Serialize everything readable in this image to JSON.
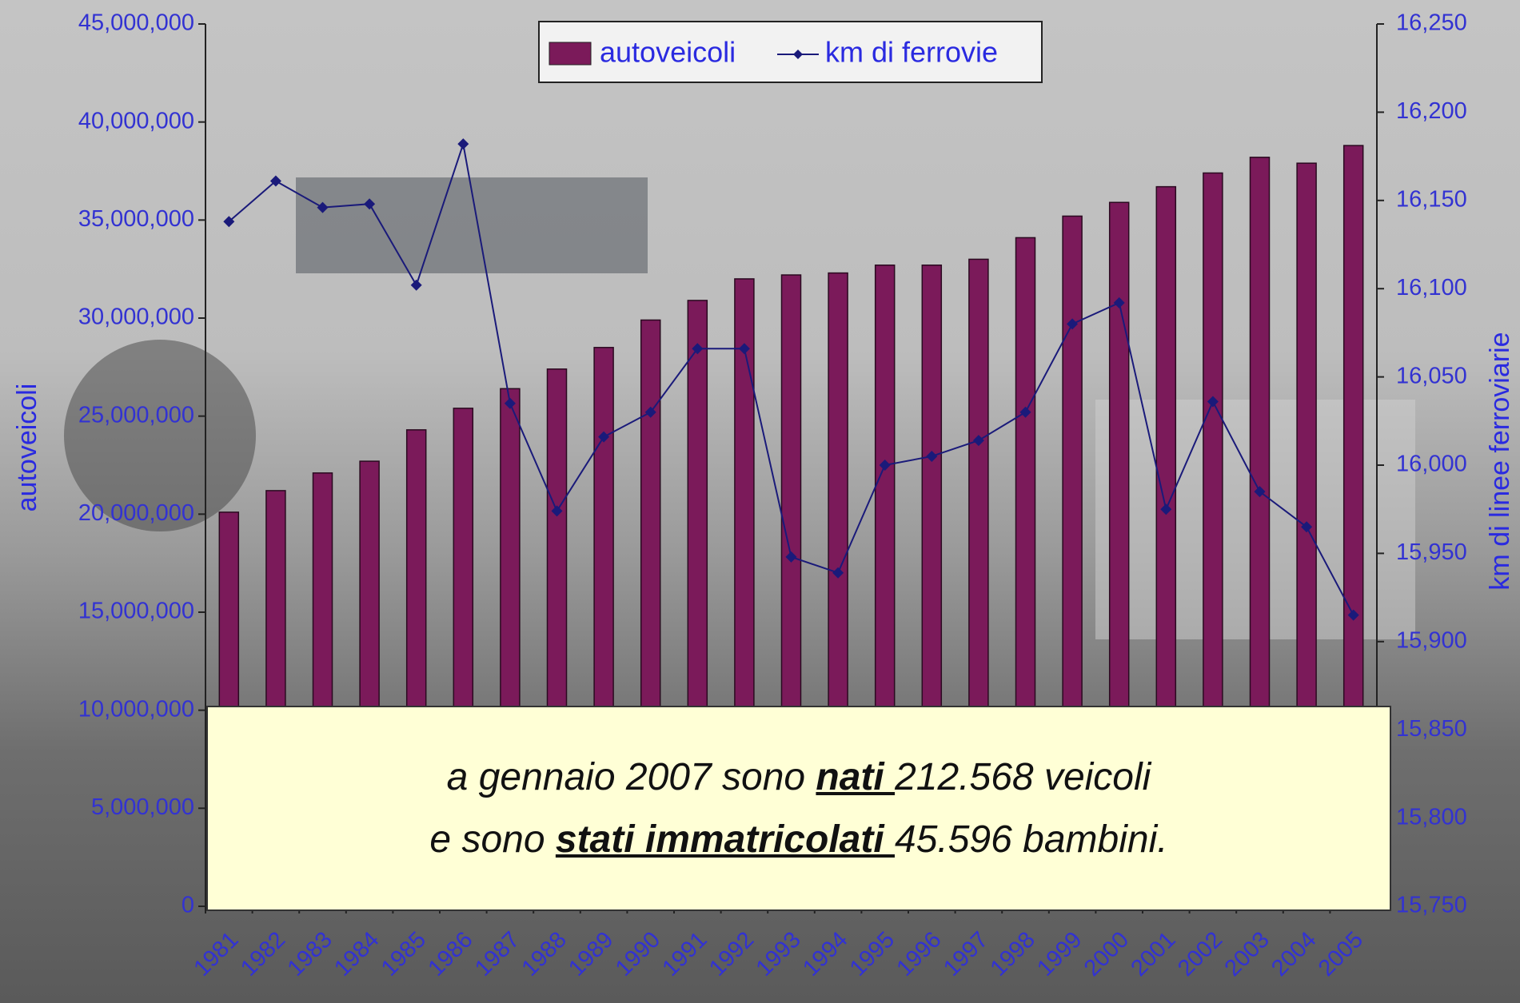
{
  "chart_data": {
    "type": "bar",
    "categories": [
      "1981",
      "1982",
      "1983",
      "1984",
      "1985",
      "1986",
      "1987",
      "1988",
      "1989",
      "1990",
      "1991",
      "1992",
      "1993",
      "1994",
      "1995",
      "1996",
      "1997",
      "1998",
      "1999",
      "2000",
      "2001",
      "2002",
      "2003",
      "2004",
      "2005"
    ],
    "series": [
      {
        "name": "autoveicoli",
        "type": "bar",
        "color": "#7b1a5a",
        "values": [
          20100000,
          21200000,
          22100000,
          22700000,
          24300000,
          25400000,
          26400000,
          27400000,
          28500000,
          29900000,
          30900000,
          32000000,
          32200000,
          32300000,
          32700000,
          32700000,
          33000000,
          34100000,
          35200000,
          35900000,
          36700000,
          37400000,
          38200000,
          37900000,
          38800000
        ]
      },
      {
        "name": "km di ferrovie",
        "type": "line",
        "axis": "y2",
        "color": "#1a1a7a",
        "values": [
          16138,
          16161,
          16146,
          16148,
          16102,
          16182,
          16035,
          15974,
          16016,
          16030,
          16066,
          16066,
          15948,
          15939,
          16000,
          16005,
          16014,
          16030,
          16080,
          16092,
          15975,
          16036,
          15985,
          15965,
          15915
        ]
      }
    ],
    "ylabel": "autoveicoli",
    "y2label": "km di linee ferroviarie",
    "ylim": [
      0,
      45000000
    ],
    "yticks": [
      0,
      {
        "value": 5000000,
        "label": "5,000,000"
      },
      {
        "value": 10000000,
        "label": "10,000,000"
      },
      {
        "value": 15000000,
        "label": "15,000,000"
      },
      {
        "value": 20000000,
        "label": "20,000,000"
      },
      {
        "value": 25000000,
        "label": "25,000,000"
      },
      {
        "value": 30000000,
        "label": "30,000,000"
      },
      {
        "value": 35000000,
        "label": "35,000,000"
      },
      {
        "value": 40000000,
        "label": "40,000,000"
      },
      {
        "value": 45000000,
        "label": "45,000,000"
      }
    ],
    "y2lim": [
      15750,
      16250
    ],
    "y2ticks": [
      {
        "value": 15750,
        "label": "15,750"
      },
      {
        "value": 15800,
        "label": "15,800"
      },
      {
        "value": 15850,
        "label": "15,850"
      },
      {
        "value": 15900,
        "label": "15,900"
      },
      {
        "value": 15950,
        "label": "15,950"
      },
      {
        "value": 16000,
        "label": "16,000"
      },
      {
        "value": 16050,
        "label": "16,050"
      },
      {
        "value": 16100,
        "label": "16,100"
      },
      {
        "value": 16150,
        "label": "16,150"
      },
      {
        "value": 16200,
        "label": "16,200"
      },
      {
        "value": 16250,
        "label": "16,250"
      }
    ],
    "legend": "top",
    "annotation": {
      "lines": [
        [
          "a gennaio 2007 sono ",
          "nati ",
          "212.568 veicoli"
        ],
        [
          "e sono ",
          "stati immatricolati ",
          "45.596 bambini."
        ]
      ]
    }
  }
}
